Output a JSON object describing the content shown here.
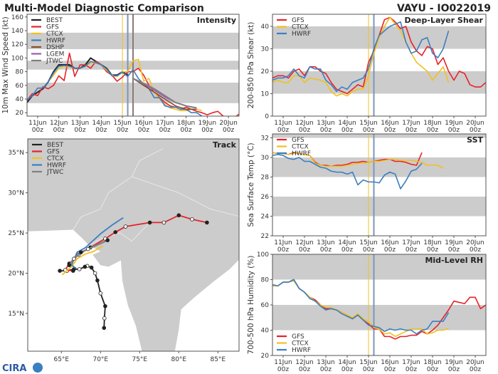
{
  "header": {
    "title": "Multi-Model Diagnostic Comparison",
    "storm": "VAYU - IO022019"
  },
  "logo": {
    "text": "CIRA"
  },
  "colors": {
    "BEST": "#222222",
    "GFS": "#e8222a",
    "CTCX": "#f2c01e",
    "HWRF": "#3a7fc0",
    "DSHP": "#8b4a2b",
    "LGEM": "#9b59b6",
    "JTWC": "#808080",
    "band": "#cccccc",
    "land": "#cccccc"
  },
  "time_ticks": [
    "11Jun 00z",
    "12Jun 00z",
    "13Jun 00z",
    "14Jun 00z",
    "15Jun 00z",
    "16Jun 00z",
    "17Jun 00z",
    "18Jun 00z",
    "19Jun 00z",
    "20Jun 00z"
  ],
  "chart_data": [
    {
      "id": "intensity",
      "type": "line",
      "title": "Intensity",
      "ylabel": "10m Max Wind Speed (kt)",
      "ylim": [
        15,
        164
      ],
      "xlim": [
        "10Jun 12z",
        "20Jun 12z"
      ],
      "yticks": [
        20,
        40,
        60,
        80,
        100,
        120,
        140,
        160
      ],
      "bands": [
        [
          34,
          64
        ],
        [
          83,
          96
        ],
        [
          113,
          137
        ]
      ],
      "vlines": [
        {
          "time": "15Jun 00z",
          "color": "#f2c01e"
        },
        {
          "time": "15Jun 06z",
          "color": "#7f93b8"
        },
        {
          "time": "15Jun 12z",
          "color": "#8a7a7a"
        }
      ],
      "legend": "top-left",
      "series": [
        {
          "name": "BEST",
          "start": "10Jun 12z",
          "interval_hours": 6,
          "values": [
            35,
            45,
            50,
            55,
            65,
            80,
            90,
            90,
            90,
            85,
            85,
            90,
            100,
            95,
            90,
            85,
            75,
            75,
            80,
            75
          ]
        },
        {
          "name": "GFS",
          "start": "10Jun 12z",
          "interval_hours": 6,
          "values": [
            38,
            48,
            45,
            58,
            55,
            60,
            74,
            67,
            107,
            73,
            90,
            90,
            85,
            95,
            90,
            80,
            75,
            66,
            72,
            80,
            80,
            85,
            75,
            60,
            50,
            42,
            35,
            30,
            28,
            25,
            28,
            25,
            22,
            20,
            17,
            20,
            22,
            15,
            12,
            12,
            18
          ]
        },
        {
          "name": "CTCX",
          "start": "11Jun 12z",
          "interval_hours": 6,
          "values": [
            65,
            75,
            85,
            88,
            87,
            85,
            85,
            88,
            93,
            93,
            90,
            82,
            75,
            73,
            80,
            80,
            96,
            98,
            66,
            70,
            50,
            40,
            32,
            27,
            25,
            23,
            23,
            25,
            25,
            23
          ]
        },
        {
          "name": "HWRF",
          "start": "10Jun 12z",
          "interval_hours": 6,
          "values": [
            38,
            45,
            56,
            56,
            65,
            78,
            88,
            89,
            88,
            85,
            85,
            88,
            95,
            93,
            90,
            84,
            74,
            74,
            79,
            73,
            83,
            70,
            62,
            55,
            42,
            42,
            30,
            28,
            28,
            25,
            25,
            20,
            20,
            15
          ]
        },
        {
          "name": "DSHP",
          "start": "15Jun 12z",
          "interval_hours": 12,
          "values": [
            70,
            60,
            50,
            40,
            30,
            25,
            25
          ]
        },
        {
          "name": "LGEM",
          "start": "15Jun 12z",
          "interval_hours": 12,
          "values": [
            70,
            62,
            53,
            43,
            35,
            30,
            27
          ]
        },
        {
          "name": "JTWC",
          "start": "15Jun 12z",
          "interval_hours": 12,
          "values": [
            70,
            63,
            55,
            45,
            35,
            30,
            27
          ]
        }
      ]
    },
    {
      "id": "shear",
      "type": "line",
      "title": "Deep-Layer Shear",
      "ylabel": "200-850 hPa Shear (kt)",
      "ylim": [
        0,
        45.4
      ],
      "xlim": [
        "10Jun 12z",
        "20Jun 12z"
      ],
      "yticks": [
        0,
        10,
        20,
        30,
        40
      ],
      "bands": [
        [
          10,
          20
        ],
        [
          30,
          40
        ]
      ],
      "vlines": [
        {
          "time": "15Jun 00z",
          "color": "#f2c01e"
        },
        {
          "time": "15Jun 06z",
          "color": "#7f93b8"
        }
      ],
      "legend": "top-left",
      "series": [
        {
          "name": "GFS",
          "start": "10Jun 12z",
          "interval_hours": 6,
          "values": [
            17,
            18,
            18,
            17,
            20,
            21,
            18,
            22,
            22,
            20,
            19,
            15,
            12,
            11,
            10,
            12,
            14,
            13,
            24,
            29,
            36,
            43,
            44,
            42,
            39,
            40,
            33,
            29,
            27,
            31,
            30,
            23,
            26,
            20,
            16,
            20,
            19,
            14,
            13,
            13,
            15
          ]
        },
        {
          "name": "CTCX",
          "start": "10Jun 12z",
          "interval_hours": 6,
          "values": [
            15,
            16,
            15,
            15,
            18,
            18,
            15,
            17,
            16.5,
            16,
            15,
            11,
            9,
            10,
            9,
            11,
            12,
            12,
            18,
            28,
            35,
            40,
            44,
            41,
            38,
            33,
            28,
            24,
            22,
            20,
            16,
            19,
            22,
            15
          ]
        },
        {
          "name": "HWRF",
          "start": "10Jun 12z",
          "interval_hours": 6,
          "values": [
            16,
            17,
            17,
            18,
            21,
            18,
            17,
            22,
            21,
            21,
            16,
            14,
            11,
            13,
            12,
            15,
            16,
            17,
            21,
            30,
            36,
            38,
            40,
            41,
            42,
            33,
            28,
            29,
            34,
            35,
            28,
            26,
            30,
            38
          ]
        }
      ]
    },
    {
      "id": "sst",
      "type": "line",
      "title": "SST",
      "ylabel": "Sea Surface Temp (°C)",
      "ylim": [
        22,
        32.4
      ],
      "xlim": [
        "10Jun 12z",
        "20Jun 12z"
      ],
      "yticks": [
        22,
        24,
        26,
        28,
        30,
        32
      ],
      "bands": [
        [
          24,
          26
        ],
        [
          28,
          30
        ],
        [
          32,
          32.4
        ]
      ],
      "vlines": [
        {
          "time": "15Jun 00z",
          "color": "#f2c01e"
        },
        {
          "time": "15Jun 06z",
          "color": "#7f93b8"
        }
      ],
      "legend": "top-left",
      "series": [
        {
          "name": "GFS",
          "start": "10Jun 12z",
          "interval_hours": 6,
          "values": [
            30.5,
            30.4,
            30.4,
            30.3,
            30.5,
            30.4,
            30.3,
            30.2,
            29.5,
            29.2,
            29.2,
            29.1,
            29.2,
            29.2,
            29.3,
            29.5,
            29.5,
            29.6,
            29.5,
            29.6,
            29.7,
            29.8,
            29.8,
            29.6,
            29.6,
            29.5,
            29.3,
            29.2,
            30.5
          ]
        },
        {
          "name": "CTCX",
          "start": "10Jun 12z",
          "interval_hours": 6,
          "values": [
            30.5,
            30.4,
            30.4,
            30.3,
            30.4,
            30.4,
            30.3,
            30.2,
            29.4,
            29.2,
            29.1,
            29.1,
            29.1,
            29.1,
            29.2,
            29.3,
            29.4,
            29.4,
            29.5,
            29.6,
            29.6,
            29.7,
            29.8,
            29.8,
            29.7,
            29.7,
            29.7,
            29.6,
            29.5,
            29.2,
            29.2,
            29.2,
            28.9
          ]
        },
        {
          "name": "HWRF",
          "start": "10Jun 12z",
          "interval_hours": 6,
          "values": [
            30.2,
            30.3,
            30.2,
            29.9,
            29.8,
            30.0,
            29.6,
            29.6,
            29.3,
            29.0,
            28.9,
            28.6,
            28.5,
            28.5,
            28.3,
            28.5,
            27.2,
            27.7,
            27.5,
            27.5,
            27.4,
            28.2,
            28.5,
            28.3,
            26.8,
            27.6,
            28.6,
            28.8,
            29.4
          ]
        }
      ]
    },
    {
      "id": "rh",
      "type": "line",
      "title": "Mid-Level RH",
      "ylabel": "700-500 hPa Humidity (%)",
      "ylim": [
        20,
        100
      ],
      "xlim": [
        "10Jun 12z",
        "20Jun 12z"
      ],
      "yticks": [
        20,
        40,
        60,
        80,
        100
      ],
      "bands": [
        [
          40,
          60
        ],
        [
          80,
          100
        ]
      ],
      "vlines": [
        {
          "time": "15Jun 00z",
          "color": "#f2c01e"
        },
        {
          "time": "15Jun 06z",
          "color": "#7f93b8"
        }
      ],
      "legend": "bottom-left",
      "series": [
        {
          "name": "GFS",
          "start": "10Jun 12z",
          "interval_hours": 6,
          "values": [
            76,
            75,
            78,
            78,
            80,
            73,
            70,
            66,
            64,
            60,
            57,
            57,
            56,
            54,
            52,
            49,
            52,
            48,
            45,
            41,
            41,
            35,
            35,
            33,
            35,
            35,
            36,
            36,
            39,
            37,
            40,
            44,
            50,
            56,
            63,
            62,
            61,
            66,
            66,
            57,
            60
          ]
        },
        {
          "name": "CTCX",
          "start": "10Jun 12z",
          "interval_hours": 6,
          "values": [
            75,
            75,
            78,
            78,
            79,
            73,
            70,
            66,
            63,
            60,
            58,
            58,
            56,
            54,
            52,
            50,
            53,
            49,
            47,
            42,
            41,
            37,
            38,
            35,
            37,
            39,
            41,
            41,
            41,
            37,
            38,
            40,
            40,
            41.5
          ]
        },
        {
          "name": "HWRF",
          "start": "10Jun 12z",
          "interval_hours": 6,
          "values": [
            76,
            75,
            78,
            78,
            80,
            73,
            70,
            65,
            63,
            59,
            56,
            57,
            56,
            53,
            51,
            49,
            52,
            48,
            44,
            43,
            42,
            39,
            41,
            40,
            41,
            40,
            40,
            37,
            40,
            41,
            47,
            47,
            47,
            54
          ]
        }
      ]
    },
    {
      "id": "track",
      "type": "scatter",
      "title": "Track",
      "xlim": [
        60.7,
        87.7
      ],
      "ylim": [
        10.3,
        36.7
      ],
      "xticks": [
        65,
        70,
        75,
        80,
        85
      ],
      "xtick_labels": [
        "65°E",
        "70°E",
        "75°E",
        "80°E",
        "85°E"
      ],
      "yticks": [
        15,
        20,
        25,
        30,
        35
      ],
      "ytick_labels": [
        "15°N",
        "20°N",
        "25°N",
        "30°N",
        "35°N"
      ],
      "legend": "top-left",
      "series": [
        {
          "name": "BEST",
          "points": [
            [
              70.45,
              13.2
            ],
            [
              70.5,
              14.4
            ],
            [
              70.6,
              15.9
            ],
            [
              70.0,
              17.5
            ],
            [
              69.6,
              19.1
            ],
            [
              69.3,
              20.0
            ],
            [
              68.85,
              20.7
            ],
            [
              68.3,
              20.9
            ],
            [
              68.0,
              20.8
            ],
            [
              67.3,
              20.5
            ],
            [
              66.6,
              20.5
            ],
            [
              65.7,
              20.3
            ],
            [
              64.8,
              20.3
            ]
          ]
        },
        {
          "name": "GFS",
          "points": [
            [
              66.5,
              20.3
            ],
            [
              65.5,
              20.4
            ],
            [
              66.0,
              21.2
            ],
            [
              67.2,
              22.3
            ],
            [
              68.7,
              23.2
            ],
            [
              70.6,
              24.3
            ],
            [
              71.9,
              25.1
            ],
            [
              73.2,
              25.8
            ],
            [
              76.3,
              26.3
            ],
            [
              78.1,
              26.3
            ],
            [
              80.0,
              27.2
            ],
            [
              81.7,
              26.7
            ],
            [
              83.6,
              26.3
            ]
          ]
        },
        {
          "name": "CTCX",
          "points": [
            [
              65.1,
              19.8
            ],
            [
              65.8,
              20.4
            ],
            [
              66.4,
              20.9
            ],
            [
              67.0,
              21.8
            ],
            [
              68.1,
              22.4
            ],
            [
              69.1,
              22.7
            ],
            [
              70.3,
              23.4
            ]
          ]
        },
        {
          "name": "HWRF",
          "points": [
            [
              66.9,
              20.6
            ],
            [
              66.3,
              21.0
            ],
            [
              67.0,
              22.6
            ],
            [
              68.1,
              23.2
            ],
            [
              70.0,
              24.9
            ],
            [
              71.5,
              26.0
            ],
            [
              72.9,
              26.9
            ]
          ]
        },
        {
          "name": "JTWC",
          "points": [
            [
              66.0,
              21.0
            ],
            [
              66.6,
              21.8
            ],
            [
              67.5,
              22.6
            ],
            [
              68.4,
              23.0
            ],
            [
              70.9,
              24.1
            ]
          ]
        }
      ]
    }
  ]
}
